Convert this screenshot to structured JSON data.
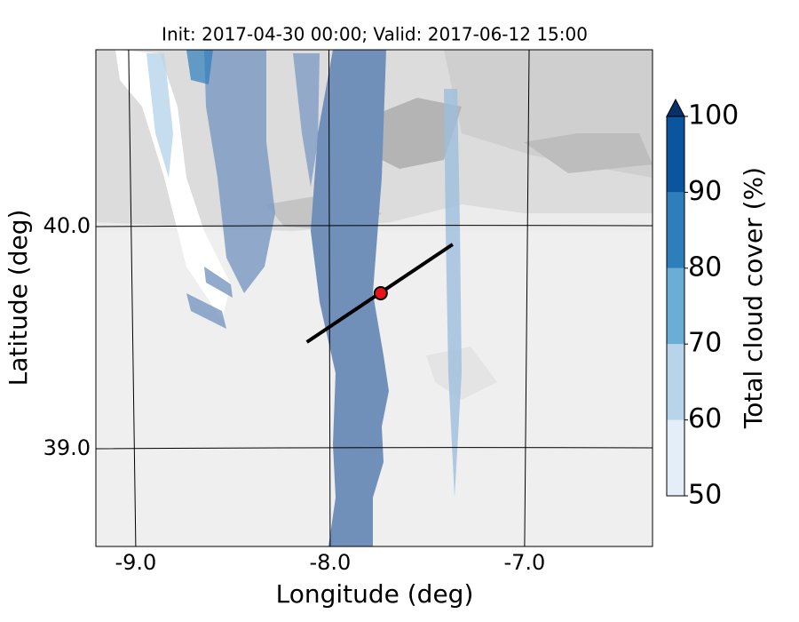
{
  "chart_data": {
    "type": "map",
    "title": "Init: 2017-04-30 00:00; Valid: 2017-06-12 15:00",
    "x_label": "Longitude (deg)",
    "y_label": "Latitude (deg)",
    "xlim": [
      -9.205,
      -6.342
    ],
    "ylim": [
      38.56,
      40.796
    ],
    "xticks": [
      {
        "value": -9,
        "label": "-9.0"
      },
      {
        "value": -8,
        "label": "-8.0"
      },
      {
        "value": -7,
        "label": "-7.0"
      }
    ],
    "yticks": [
      {
        "value": 39,
        "label": "39.0"
      },
      {
        "value": 40,
        "label": "40.0"
      }
    ],
    "grid": true,
    "cross_section": {
      "lon": [
        -8.12,
        -7.37
      ],
      "lat": [
        39.48,
        39.92
      ],
      "color": "#000000"
    },
    "point": {
      "lon": -7.74,
      "lat": 39.7,
      "color": "#e8141a"
    },
    "colorbar": {
      "label": "Total cloud cover (%)",
      "lim": [
        50,
        100
      ],
      "ticks": [
        50,
        60,
        70,
        80,
        90,
        100
      ],
      "colors": [
        "#e3eef8",
        "#b7d4ea",
        "#6aaed6",
        "#2e7ebc",
        "#0b559f"
      ],
      "extend_color": "#08306b"
    }
  }
}
